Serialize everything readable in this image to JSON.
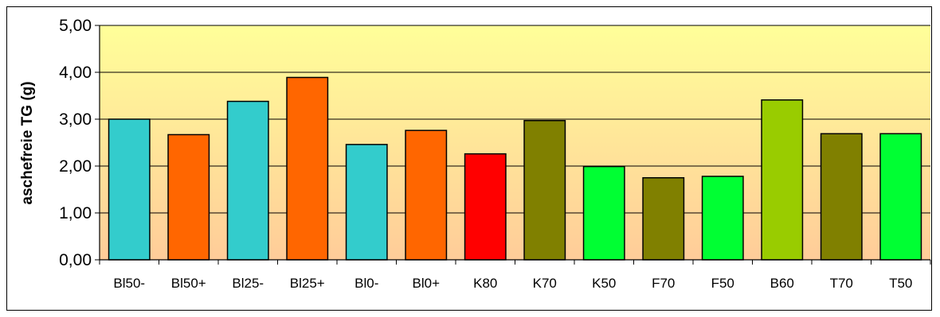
{
  "chart_data": {
    "type": "bar",
    "title": "",
    "xlabel": "",
    "ylabel": "aschefreie TG (g)",
    "ylim": [
      0,
      5
    ],
    "yticks": [
      0,
      1,
      2,
      3,
      4,
      5
    ],
    "ytick_labels": [
      "0,00",
      "1,00",
      "2,00",
      "3,00",
      "4,00",
      "5,00"
    ],
    "grid": "horizontal",
    "legend": "none",
    "categories": [
      "Bl50-",
      "Bl50+",
      "Bl25-",
      "Bl25+",
      "Bl0-",
      "Bl0+",
      "K80",
      "K70",
      "K50",
      "F70",
      "F50",
      "B60",
      "T70",
      "T50"
    ],
    "values": [
      3.0,
      2.67,
      3.38,
      3.89,
      2.46,
      2.76,
      2.26,
      2.97,
      1.99,
      1.75,
      1.78,
      3.41,
      2.69,
      2.69
    ],
    "bar_colors": [
      "#33CCCC",
      "#FF6600",
      "#33CCCC",
      "#FF6600",
      "#33CCCC",
      "#FF6600",
      "#FF0000",
      "#808000",
      "#00FF33",
      "#808000",
      "#00FF33",
      "#99CC00",
      "#808000",
      "#00FF33"
    ],
    "plot_background": {
      "top": "#FFFF99",
      "bottom": "#FFCC99"
    }
  }
}
